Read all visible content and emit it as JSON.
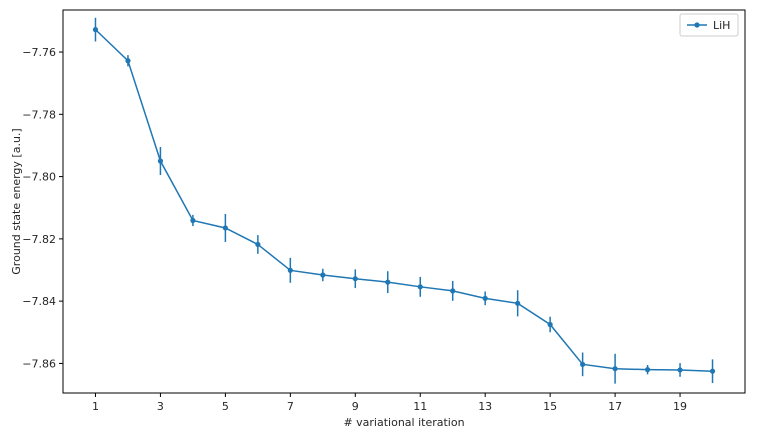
{
  "chart_data": {
    "type": "line",
    "title": "",
    "xlabel": "# variational iteration",
    "ylabel": "Ground state energy [a.u.]",
    "xlim": [
      0.0,
      21.0
    ],
    "ylim": [
      -7.8695,
      -7.7465
    ],
    "x_ticks": [
      1,
      3,
      5,
      7,
      9,
      11,
      13,
      15,
      17,
      19
    ],
    "y_ticks": [
      -7.76,
      -7.78,
      -7.8,
      -7.82,
      -7.84,
      -7.86
    ],
    "y_tick_labels": [
      "−7.76",
      "−7.78",
      "−7.80",
      "−7.82",
      "−7.84",
      "−7.86"
    ],
    "grid": false,
    "legend_position": "top-right",
    "color": "#1f77b4",
    "series": [
      {
        "name": "LiH",
        "x": [
          1,
          2,
          3,
          4,
          5,
          6,
          7,
          8,
          9,
          10,
          11,
          12,
          13,
          14,
          15,
          16,
          17,
          18,
          19,
          20
        ],
        "y": [
          -7.7528,
          -7.7628,
          -7.795,
          -7.8141,
          -7.8165,
          -7.8218,
          -7.8301,
          -7.8316,
          -7.8328,
          -7.8339,
          -7.8354,
          -7.8367,
          -7.8391,
          -7.8407,
          -7.8475,
          -7.8603,
          -7.8617,
          -7.862,
          -7.8621,
          -7.8625
        ],
        "error": [
          0.0038,
          0.0018,
          0.0045,
          0.0018,
          0.0045,
          0.003,
          0.004,
          0.002,
          0.003,
          0.0035,
          0.0032,
          0.0032,
          0.0022,
          0.0042,
          0.0025,
          0.0038,
          0.0048,
          0.0015,
          0.0022,
          0.0038
        ]
      }
    ]
  }
}
